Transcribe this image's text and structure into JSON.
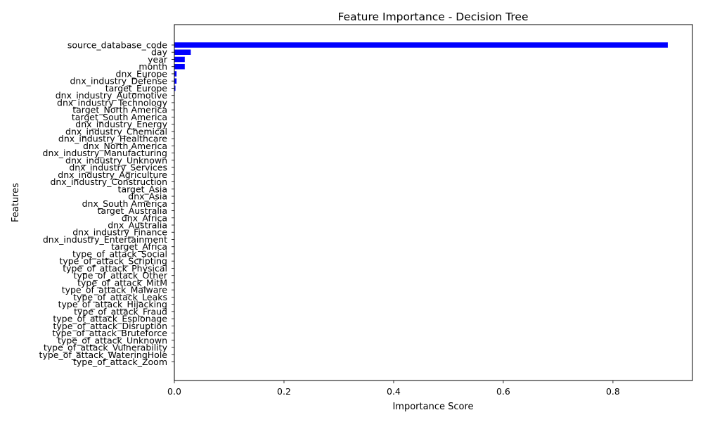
{
  "chart_data": {
    "type": "bar",
    "orientation": "horizontal",
    "title": "Feature Importance - Decision Tree",
    "xlabel": "Importance Score",
    "ylabel": "Features",
    "xlim": [
      0,
      0.945
    ],
    "xticks": [
      0.0,
      0.2,
      0.4,
      0.6,
      0.8
    ],
    "xtick_labels": [
      "0.0",
      "0.2",
      "0.4",
      "0.6",
      "0.8"
    ],
    "grid": false,
    "bar_color": "#0000ff",
    "categories": [
      "source_database_code",
      "day",
      "year",
      "month",
      "dnx_Europe",
      "dnx_industry_Defense",
      "target_Europe",
      "dnx_industry_Automotive",
      "dnx_industry_Technology",
      "target_North America",
      "target_South America",
      "dnx_industry_Energy",
      "dnx_industry_Chemical",
      "dnx_industry_Healthcare",
      "dnx_North America",
      "dnx_industry_Manufacturing",
      "dnx_industry_Unknown",
      "dnx_industry_Services",
      "dnx_industry_Agriculture",
      "dnx_industry_Construction",
      "target_Asia",
      "dnx_Asia",
      "dnx_South America",
      "target_Australia",
      "dnx_Africa",
      "dnx_Australia",
      "dnx_industry_Finance",
      "dnx_industry_Entertainment",
      "target_Africa",
      "type_of_attack_Social",
      "type_of_attack_Scripting",
      "type_of_attack_Physical",
      "type_of_attack_Other",
      "type_of_attack_MitM",
      "type_of_attack_Malware",
      "type_of_attack_Leaks",
      "type_of_attack_Hijacking",
      "type_of_attack_Fraud",
      "type_of_attack_Espionage",
      "type_of_attack_Disruption",
      "type_of_attack_Bruteforce",
      "type_of_attack_Unknown",
      "type_of_attack_Vulnerability",
      "type_of_attack_WateringHole",
      "type_of_attack_Zoom"
    ],
    "values": [
      0.9,
      0.03,
      0.019,
      0.019,
      0.004,
      0.004,
      0.002,
      0,
      0,
      0,
      0,
      0,
      0,
      0,
      0,
      0,
      0,
      0,
      0,
      0,
      0,
      0,
      0,
      0,
      0,
      0,
      0,
      0,
      0,
      0,
      0,
      0,
      0,
      0,
      0,
      0,
      0,
      0,
      0,
      0,
      0,
      0,
      0,
      0,
      0
    ]
  }
}
